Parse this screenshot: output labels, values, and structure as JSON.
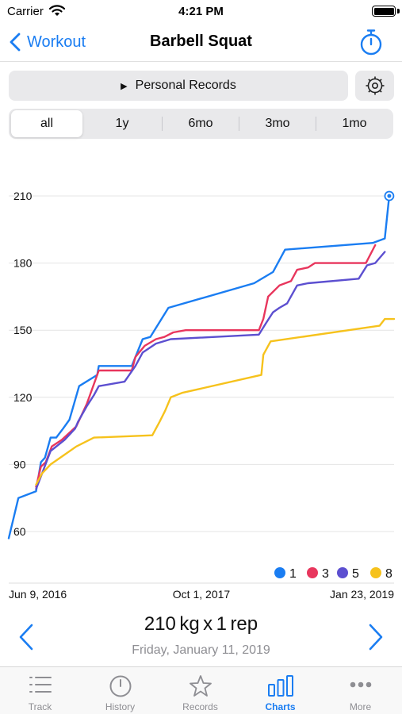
{
  "status": {
    "carrier": "Carrier",
    "time": "4:21 PM"
  },
  "nav": {
    "back_label": "Workout",
    "title": "Barbell Squat"
  },
  "records_button": {
    "label": "Personal Records"
  },
  "segments": [
    {
      "label": "all",
      "active": true
    },
    {
      "label": "1y",
      "active": false
    },
    {
      "label": "6mo",
      "active": false
    },
    {
      "label": "3mo",
      "active": false
    },
    {
      "label": "1mo",
      "active": false
    }
  ],
  "chart_data": {
    "type": "line",
    "x_tick_labels": [
      "Jun 9, 2016",
      "Oct 1, 2017",
      "Jan 23, 2019"
    ],
    "xlim": [
      "Jun 9, 2016",
      "Jan 23, 2019"
    ],
    "y_tick_labels": [
      "60",
      "90",
      "120",
      "150",
      "180",
      "210"
    ],
    "y_ticks": [
      60,
      90,
      120,
      150,
      180,
      210
    ],
    "ylim": [
      56,
      216
    ],
    "grid": true,
    "legend_position": "bottom-right",
    "series": [
      {
        "name": "1",
        "color": "#1a7df2",
        "points": [
          [
            "2016-06-09",
            57
          ],
          [
            "2016-06-21",
            66
          ],
          [
            "2016-07-03",
            75
          ],
          [
            "2016-08-16",
            78
          ],
          [
            "2016-08-28",
            91
          ],
          [
            "2016-09-07",
            93
          ],
          [
            "2016-09-21",
            102
          ],
          [
            "2016-10-05",
            102
          ],
          [
            "2016-10-22",
            106
          ],
          [
            "2016-11-07",
            110
          ],
          [
            "2016-12-01",
            125
          ],
          [
            "2017-01-15",
            130
          ],
          [
            "2017-01-19",
            134
          ],
          [
            "2017-04-11",
            134
          ],
          [
            "2017-04-20",
            138
          ],
          [
            "2017-05-08",
            146
          ],
          [
            "2017-05-27",
            147
          ],
          [
            "2017-07-11",
            160
          ],
          [
            "2018-02-09",
            171
          ],
          [
            "2018-03-28",
            176
          ],
          [
            "2018-04-27",
            186
          ],
          [
            "2018-12-01",
            189
          ],
          [
            "2018-12-31",
            191
          ],
          [
            "2019-01-11",
            210
          ]
        ]
      },
      {
        "name": "3",
        "color": "#e8365d",
        "points": [
          [
            "2016-08-16",
            80
          ],
          [
            "2016-08-28",
            89
          ],
          [
            "2016-09-09",
            91
          ],
          [
            "2016-09-24",
            98
          ],
          [
            "2016-10-19",
            101
          ],
          [
            "2016-11-24",
            107
          ],
          [
            "2016-12-20",
            117
          ],
          [
            "2017-01-19",
            132
          ],
          [
            "2017-04-11",
            132
          ],
          [
            "2017-04-20",
            138
          ],
          [
            "2017-05-13",
            143
          ],
          [
            "2017-06-10",
            146
          ],
          [
            "2017-07-01",
            147
          ],
          [
            "2017-07-23",
            149
          ],
          [
            "2017-08-23",
            150
          ],
          [
            "2018-02-21",
            150
          ],
          [
            "2018-03-04",
            155
          ],
          [
            "2018-03-16",
            165
          ],
          [
            "2018-04-13",
            170
          ],
          [
            "2018-05-12",
            172
          ],
          [
            "2018-05-27",
            177
          ],
          [
            "2018-06-23",
            178
          ],
          [
            "2018-07-10",
            180
          ],
          [
            "2018-11-14",
            180
          ],
          [
            "2018-12-07",
            188
          ]
        ]
      },
      {
        "name": "5",
        "color": "#5c4fd0",
        "points": [
          [
            "2016-08-16",
            79
          ],
          [
            "2016-08-31",
            86
          ],
          [
            "2016-09-21",
            96
          ],
          [
            "2016-10-26",
            101
          ],
          [
            "2016-11-21",
            106
          ],
          [
            "2016-11-28",
            109
          ],
          [
            "2016-12-20",
            116
          ],
          [
            "2017-01-07",
            121
          ],
          [
            "2017-01-19",
            125
          ],
          [
            "2017-03-24",
            127
          ],
          [
            "2017-04-20",
            134
          ],
          [
            "2017-05-08",
            140
          ],
          [
            "2017-06-10",
            144
          ],
          [
            "2017-07-17",
            146
          ],
          [
            "2018-02-21",
            148
          ],
          [
            "2018-03-10",
            153
          ],
          [
            "2018-03-28",
            158
          ],
          [
            "2018-04-13",
            160
          ],
          [
            "2018-05-02",
            162
          ],
          [
            "2018-05-27",
            170
          ],
          [
            "2018-06-23",
            171
          ],
          [
            "2018-10-27",
            173
          ],
          [
            "2018-11-17",
            179
          ],
          [
            "2018-12-07",
            180
          ],
          [
            "2018-12-31",
            185
          ]
        ]
      },
      {
        "name": "8",
        "color": "#f6c21c",
        "points": [
          [
            "2016-08-16",
            81
          ],
          [
            "2016-08-31",
            86
          ],
          [
            "2016-09-21",
            90
          ],
          [
            "2016-10-23",
            94
          ],
          [
            "2016-11-24",
            98
          ],
          [
            "2017-01-07",
            102
          ],
          [
            "2017-06-01",
            103
          ],
          [
            "2017-06-19",
            109
          ],
          [
            "2017-07-03",
            114
          ],
          [
            "2017-07-17",
            120
          ],
          [
            "2017-08-14",
            122
          ],
          [
            "2018-02-27",
            130
          ],
          [
            "2018-03-04",
            139
          ],
          [
            "2018-03-22",
            145
          ],
          [
            "2018-12-18",
            152
          ],
          [
            "2018-12-31",
            155
          ],
          [
            "2019-01-23",
            155
          ]
        ]
      }
    ],
    "highlight": {
      "series": "1",
      "x": "2019-01-11",
      "y": 210
    }
  },
  "record": {
    "weight": "210",
    "unit": "kg",
    "times": "x",
    "reps": "1",
    "rep_unit": "rep",
    "date": "Friday, January 11, 2019"
  },
  "tabs": [
    {
      "label": "Track",
      "icon": "list-icon",
      "active": false
    },
    {
      "label": "History",
      "icon": "clock-icon",
      "active": false
    },
    {
      "label": "Records",
      "icon": "star-icon",
      "active": false
    },
    {
      "label": "Charts",
      "icon": "bar-chart-icon",
      "active": true
    },
    {
      "label": "More",
      "icon": "more-icon",
      "active": false
    }
  ]
}
